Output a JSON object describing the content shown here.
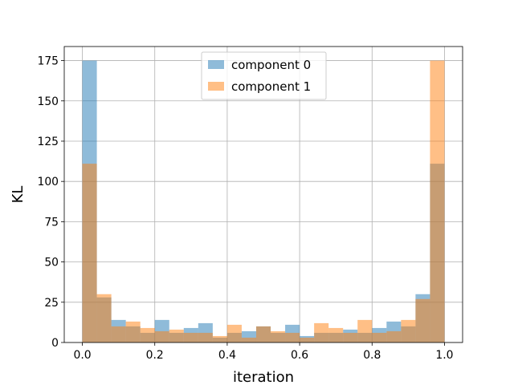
{
  "chart_data": {
    "type": "bar",
    "title": "",
    "xlabel": "iteration",
    "ylabel": "KL",
    "xlim": [
      -0.05,
      1.05
    ],
    "ylim": [
      0,
      183.75
    ],
    "bin_edges": [
      0.0,
      0.04,
      0.08,
      0.12,
      0.16,
      0.2,
      0.24,
      0.28,
      0.32,
      0.36,
      0.4,
      0.44,
      0.48,
      0.52,
      0.56,
      0.6,
      0.64,
      0.68,
      0.72,
      0.76,
      0.8,
      0.84,
      0.88,
      0.92,
      0.96,
      1.0
    ],
    "x_ticks": [
      0.0,
      0.2,
      0.4,
      0.6,
      0.8,
      1.0
    ],
    "x_tick_labels": [
      "0.0",
      "0.2",
      "0.4",
      "0.6",
      "0.8",
      "1.0"
    ],
    "y_ticks": [
      0,
      25,
      50,
      75,
      100,
      125,
      150,
      175
    ],
    "y_tick_labels": [
      "0",
      "25",
      "50",
      "75",
      "100",
      "125",
      "150",
      "175"
    ],
    "grid": true,
    "legend_position": "top-center",
    "series": [
      {
        "name": "component 0",
        "color": "#1f77b4",
        "alpha": 0.5,
        "values": [
          175,
          28,
          14,
          10,
          6,
          14,
          6,
          9,
          12,
          3,
          6,
          7,
          10,
          6,
          11,
          4,
          6,
          6,
          8,
          6,
          9,
          13,
          10,
          30,
          111
        ]
      },
      {
        "name": "component 1",
        "color": "#ff7f0e",
        "alpha": 0.5,
        "values": [
          111,
          30,
          10,
          13,
          9,
          7,
          8,
          6,
          6,
          4,
          11,
          3,
          10,
          7,
          6,
          3,
          12,
          9,
          6,
          14,
          6,
          7,
          14,
          27,
          175
        ]
      }
    ]
  }
}
